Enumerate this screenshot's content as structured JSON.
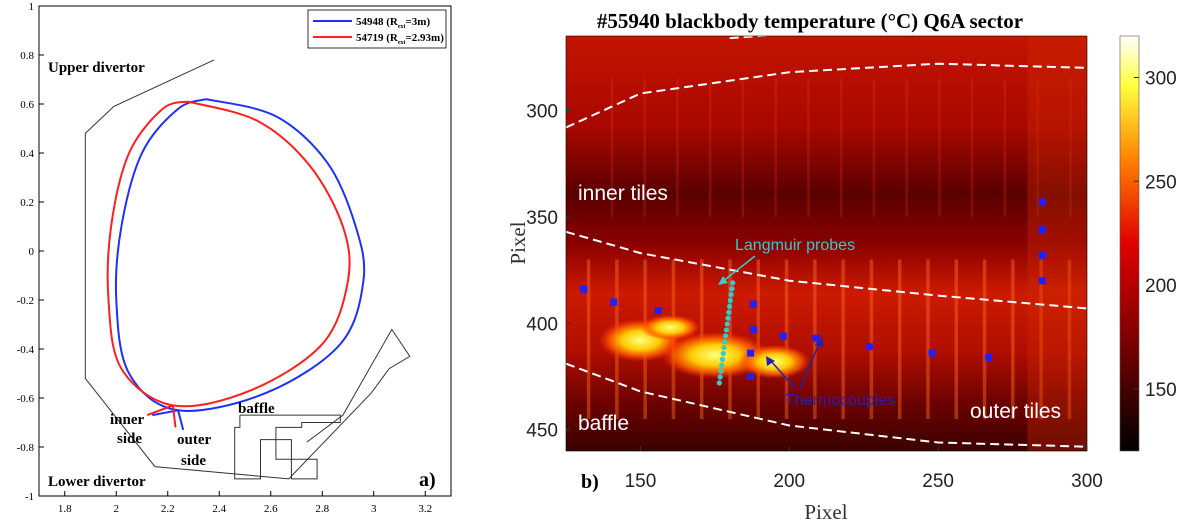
{
  "chart_data": [
    {
      "type": "line",
      "panel_label": "a)",
      "xlim": [
        1.7,
        3.3
      ],
      "ylim": [
        -1,
        1
      ],
      "x_ticks": [
        "1.8",
        "2",
        "2.2",
        "2.4",
        "2.6",
        "2.8",
        "3",
        "3.2"
      ],
      "y_ticks": [
        "1",
        "0.8",
        "0.6",
        "0.4",
        "0.2",
        "0",
        "-0.2",
        "-0.4",
        "-0.6",
        "-0.8",
        "-1"
      ],
      "x_tick_values": [
        1.8,
        2.0,
        2.2,
        2.4,
        2.6,
        2.8,
        3.0,
        3.2
      ],
      "y_tick_values": [
        1,
        0.8,
        0.6,
        0.4,
        0.2,
        0,
        -0.2,
        -0.4,
        -0.6,
        -0.8,
        -1
      ],
      "grid": false,
      "legend_position": "top-right",
      "legend": [
        {
          "shot": "54948",
          "r_sub": "ext",
          "r_val": "=3m",
          "color": "#1f2fff"
        },
        {
          "shot": "54719",
          "r_sub": "ext",
          "r_val": "=2.93m",
          "color": "#ff1f1f"
        }
      ],
      "annotations": {
        "upper_divertor": "Upper divertor",
        "lower_divertor": "Lower divertor",
        "inner_side_1": "inner",
        "inner_side_2": "side",
        "outer_side_1": "outer",
        "outer_side_2": "side",
        "baffle": "baffle"
      },
      "wall_outline": [
        [
          2.38,
          0.78
        ],
        [
          1.99,
          0.59
        ],
        [
          1.88,
          0.48
        ],
        [
          1.88,
          -0.52
        ],
        [
          2.15,
          -0.88
        ],
        [
          2.67,
          -0.93
        ],
        [
          2.99,
          -0.58
        ],
        [
          3.06,
          -0.48
        ],
        [
          3.14,
          -0.43
        ],
        [
          3.07,
          -0.32
        ],
        [
          2.88,
          -0.67
        ],
        [
          2.74,
          -0.78
        ]
      ],
      "separatrix_blue": [
        [
          2.35,
          0.62
        ],
        [
          2.62,
          0.55
        ],
        [
          2.82,
          0.36
        ],
        [
          2.93,
          0.1
        ],
        [
          2.96,
          -0.12
        ],
        [
          2.87,
          -0.38
        ],
        [
          2.58,
          -0.58
        ],
        [
          2.24,
          -0.65
        ],
        [
          2.05,
          -0.5
        ],
        [
          2.0,
          -0.2
        ],
        [
          2.02,
          0.1
        ],
        [
          2.1,
          0.4
        ],
        [
          2.24,
          0.58
        ],
        [
          2.35,
          0.62
        ]
      ],
      "separatrix_red": [
        [
          2.28,
          0.61
        ],
        [
          2.55,
          0.53
        ],
        [
          2.75,
          0.35
        ],
        [
          2.88,
          0.1
        ],
        [
          2.9,
          -0.12
        ],
        [
          2.8,
          -0.38
        ],
        [
          2.52,
          -0.57
        ],
        [
          2.22,
          -0.63
        ],
        [
          2.02,
          -0.48
        ],
        [
          1.97,
          -0.2
        ],
        [
          1.98,
          0.1
        ],
        [
          2.05,
          0.4
        ],
        [
          2.18,
          0.58
        ],
        [
          2.28,
          0.61
        ]
      ],
      "legs_blue": [
        [
          [
            2.24,
            -0.65
          ],
          [
            2.14,
            -0.67
          ]
        ],
        [
          [
            2.24,
            -0.65
          ],
          [
            2.26,
            -0.73
          ]
        ]
      ],
      "legs_red": [
        [
          [
            2.22,
            -0.63
          ],
          [
            2.12,
            -0.67
          ]
        ],
        [
          [
            2.22,
            -0.63
          ],
          [
            2.23,
            -0.72
          ]
        ]
      ]
    },
    {
      "type": "heatmap",
      "title": "#55940 blackbody temperature (°C) Q6A sector",
      "panel_label": "b)",
      "xlabel": "Pixel",
      "ylabel": "Pixel",
      "xlim": [
        125,
        300
      ],
      "ylim": [
        460,
        265
      ],
      "x_ticks": [
        "150",
        "200",
        "250",
        "300"
      ],
      "y_ticks": [
        "300",
        "350",
        "400",
        "450"
      ],
      "x_tick_values": [
        150,
        200,
        250,
        300
      ],
      "y_tick_values": [
        300,
        350,
        400,
        450
      ],
      "colorbar": {
        "ticks": [
          "300",
          "250",
          "200",
          "150"
        ],
        "tick_values": [
          300,
          250,
          200,
          150
        ],
        "range": [
          120,
          320
        ],
        "colormap": "hot"
      },
      "region_labels": {
        "inner_tiles": "inner tiles",
        "baffle": "baffle",
        "outer_tiles": "outer tiles"
      },
      "annotations": {
        "langmuir_probes": "Langmuir probes",
        "thermocouples": "Thermocouples"
      },
      "annotation_colors": {
        "langmuir_probes": "#33cccc",
        "thermocouples": "#2a1fb0"
      },
      "boundaries": [
        [
          [
            125,
            308
          ],
          [
            150,
            292
          ],
          [
            200,
            282
          ],
          [
            250,
            278
          ],
          [
            300,
            280
          ]
        ],
        [
          [
            125,
            357
          ],
          [
            150,
            367
          ],
          [
            200,
            380
          ],
          [
            250,
            387
          ],
          [
            300,
            393
          ]
        ],
        [
          [
            125,
            419
          ],
          [
            150,
            432
          ],
          [
            200,
            448
          ],
          [
            250,
            456
          ],
          [
            300,
            458
          ]
        ],
        [
          [
            180,
            266
          ],
          [
            220,
            262
          ],
          [
            300,
            262
          ]
        ]
      ],
      "thermocouples": [
        [
          131,
          384
        ],
        [
          141,
          390
        ],
        [
          156,
          394
        ],
        [
          188,
          391
        ],
        [
          188,
          403
        ],
        [
          198,
          406
        ],
        [
          209,
          407
        ],
        [
          227,
          411
        ],
        [
          248,
          414
        ],
        [
          267,
          416
        ],
        [
          187,
          414
        ],
        [
          187,
          425
        ],
        [
          285,
          343
        ],
        [
          285,
          356
        ],
        [
          285,
          368
        ],
        [
          285,
          380
        ]
      ],
      "langmuir_probes_x": [
        176.5,
        181
      ],
      "langmuir_probes_y": [
        428,
        381
      ],
      "langmuir_probes_count": 18,
      "hot_band": [
        {
          "x": 150,
          "y": 408,
          "rx": 14,
          "ry": 10
        },
        {
          "x": 175,
          "y": 415,
          "rx": 18,
          "ry": 11
        },
        {
          "x": 195,
          "y": 418,
          "rx": 12,
          "ry": 8
        },
        {
          "x": 160,
          "y": 402,
          "rx": 10,
          "ry": 6
        }
      ]
    }
  ]
}
